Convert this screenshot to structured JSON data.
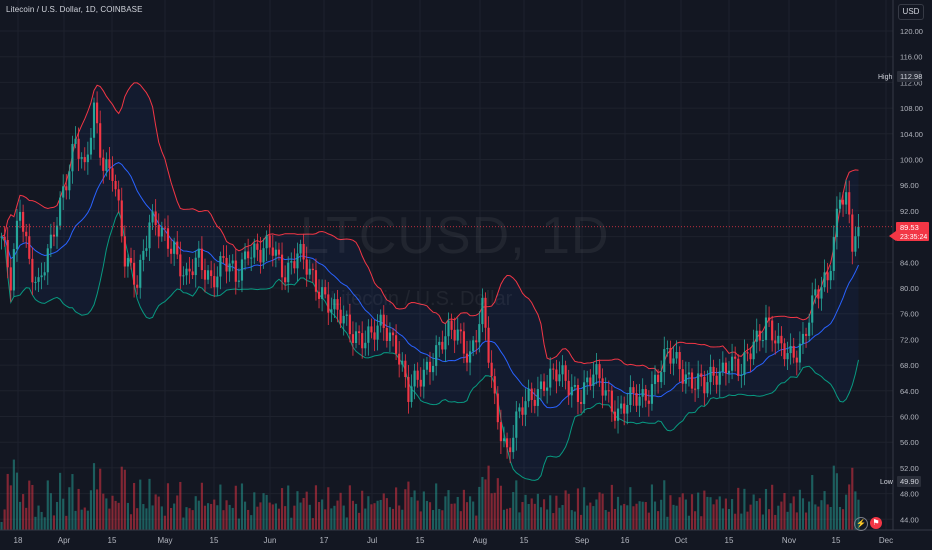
{
  "header": {
    "title": "Litecoin / U.S. Dollar, 1D, COINBASE"
  },
  "watermark": {
    "symbol": "LTCUSD, 1D",
    "name": "Litecoin / U.S. Dollar"
  },
  "currency_button": "USD",
  "price_axis": {
    "ticks": [
      "120.00",
      "116.00",
      "112.00",
      "108.00",
      "104.00",
      "100.00",
      "96.00",
      "92.00",
      "88.00",
      "84.00",
      "80.00",
      "76.00",
      "72.00",
      "68.00",
      "64.00",
      "60.00",
      "56.00",
      "52.00",
      "48.00",
      "44.00"
    ],
    "high_label": "High",
    "high_value": "112.98",
    "last_price": "89.53",
    "countdown": "23:35:24",
    "low_label": "Low",
    "low_value": "49.90"
  },
  "time_axis": {
    "labels": [
      "18",
      "Apr",
      "15",
      "May",
      "15",
      "Jun",
      "17",
      "Jul",
      "15",
      "Aug",
      "15",
      "Sep",
      "16",
      "Oct",
      "15",
      "Nov",
      "15",
      "Dec"
    ]
  },
  "tools": {
    "replay_icon": "lightning-icon",
    "alert_icon": "flag-icon"
  },
  "colors": {
    "up": "#26a69a",
    "down": "#f23645",
    "basis": "#2962ff",
    "upper_band": "#f23645",
    "lower_band": "#089981",
    "background": "#131722"
  },
  "chart_data": {
    "type": "candlestick",
    "symbol": "LTCUSD",
    "interval": "1D",
    "exchange": "COINBASE",
    "ylim": [
      42,
      122
    ],
    "last_price": 89.53,
    "visible_high": 112.98,
    "visible_low": 49.9,
    "bollinger_bands": true,
    "volume_histogram": true,
    "grid": true,
    "close_series_approx": [
      {
        "x": "Mar 18",
        "close": 88
      },
      {
        "x": "Apr 1",
        "close": 104
      },
      {
        "x": "Apr 15",
        "close": 90
      },
      {
        "x": "May 1",
        "close": 81
      },
      {
        "x": "May 15",
        "close": 82
      },
      {
        "x": "May 25",
        "close": 87
      },
      {
        "x": "Jun 1",
        "close": 84
      },
      {
        "x": "Jun 17",
        "close": 74
      },
      {
        "x": "Jul 1",
        "close": 73
      },
      {
        "x": "Jul 5",
        "close": 62
      },
      {
        "x": "Jul 15",
        "close": 70
      },
      {
        "x": "Jul 25",
        "close": 73
      },
      {
        "x": "Aug 5",
        "close": 56
      },
      {
        "x": "Aug 15",
        "close": 64
      },
      {
        "x": "Sep 1",
        "close": 65
      },
      {
        "x": "Sep 16",
        "close": 62
      },
      {
        "x": "Oct 1",
        "close": 70
      },
      {
        "x": "Oct 15",
        "close": 66
      },
      {
        "x": "Oct 28",
        "close": 74
      },
      {
        "x": "Nov 5",
        "close": 70
      },
      {
        "x": "Nov 12",
        "close": 82
      },
      {
        "x": "Nov 16",
        "close": 95
      },
      {
        "x": "Nov 20",
        "close": 89.53
      }
    ]
  }
}
